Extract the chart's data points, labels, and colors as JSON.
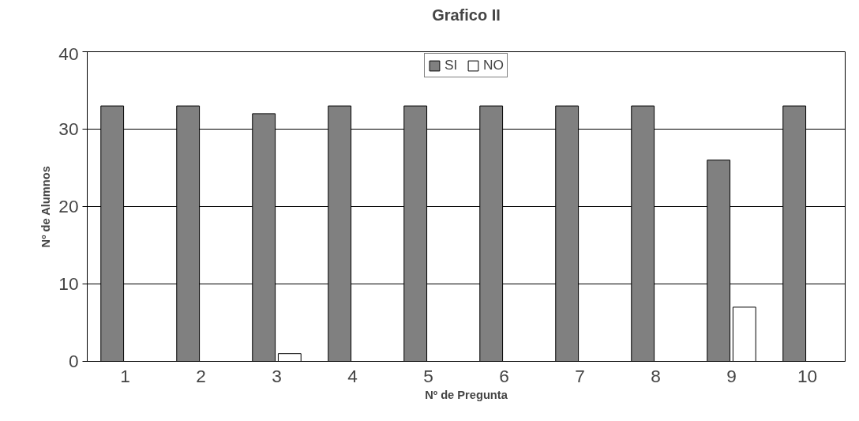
{
  "chart_data": {
    "type": "bar",
    "title": "Grafico II",
    "xlabel": "Nº de Pregunta",
    "ylabel": "Nº de Alumnos",
    "categories": [
      "1",
      "2",
      "3",
      "4",
      "5",
      "6",
      "7",
      "8",
      "9",
      "10"
    ],
    "series": [
      {
        "name": "SI",
        "color": "#808080",
        "values": [
          33,
          33,
          32,
          33,
          33,
          33,
          33,
          33,
          26,
          33
        ]
      },
      {
        "name": "NO",
        "color": "#ffffff",
        "values": [
          0,
          0,
          1,
          0,
          0,
          0,
          0,
          0,
          7,
          0
        ]
      }
    ],
    "ylim": [
      0,
      40
    ],
    "yticks": [
      0,
      10,
      20,
      30,
      40
    ],
    "grid": "y",
    "legend": "top"
  }
}
